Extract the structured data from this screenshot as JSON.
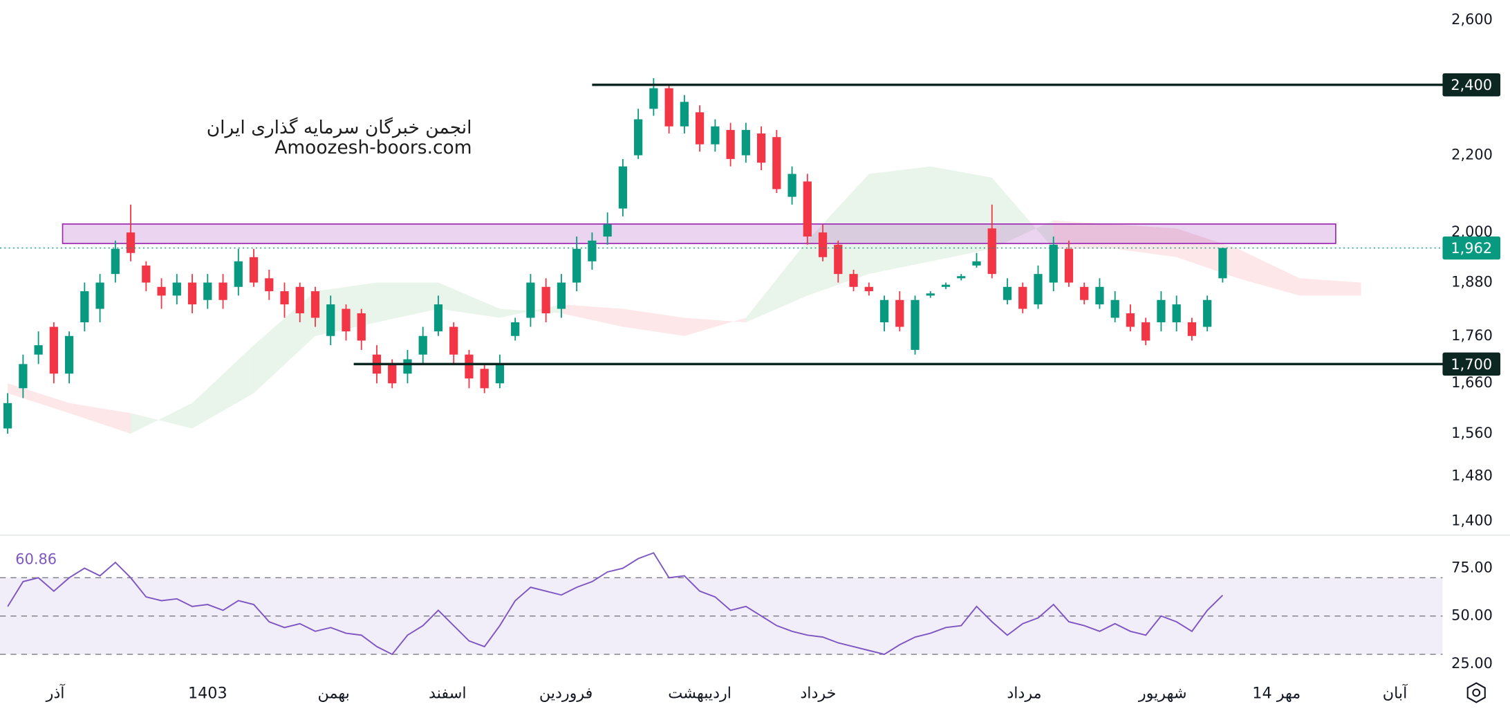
{
  "chart_data": {
    "type": "candlestick",
    "watermark": [
      "انجمن خبرگان سرمایه گذاری ایران",
      "Amoozesh-boors.com"
    ],
    "log_scale": true,
    "xlim": [
      -0.5,
      93.3
    ],
    "xticks": [
      {
        "value": 3.1,
        "label": "آذر"
      },
      {
        "value": 13.0,
        "label": "1403"
      },
      {
        "value": 21.2,
        "label": "بهمن"
      },
      {
        "value": 28.6,
        "label": "اسفند"
      },
      {
        "value": 36.3,
        "label": "فروردین"
      },
      {
        "value": 45.0,
        "label": "اردیبهشت"
      },
      {
        "value": 52.7,
        "label": "خرداد"
      },
      {
        "value": 66.1,
        "label": "مرداد"
      },
      {
        "value": 75.1,
        "label": "شهریور"
      },
      {
        "value": 82.5,
        "label": "14 مهر"
      },
      {
        "value": 90.2,
        "label": "آبان"
      }
    ],
    "ylim": [
      1377,
      2665
    ],
    "yticks": [
      {
        "value": 1400,
        "label": "1,400"
      },
      {
        "value": 1480,
        "label": "1,480"
      },
      {
        "value": 1560,
        "label": "1,560"
      },
      {
        "value": 1660,
        "label": "1,660"
      },
      {
        "value": 1760,
        "label": "1,760"
      },
      {
        "value": 1880,
        "label": "1,880"
      },
      {
        "value": 2000,
        "label": "2,000"
      },
      {
        "value": 2200,
        "label": "2,200"
      },
      {
        "value": 2400,
        "label": "2,400"
      },
      {
        "value": 2600,
        "label": "2,600"
      }
    ],
    "up_color": "#089981",
    "down_color": "#f23645",
    "open": [
      1570,
      1650,
      1720,
      1780,
      1680,
      1790,
      1820,
      1900,
      2000,
      1920,
      1870,
      1850,
      1880,
      1840,
      1880,
      1870,
      1940,
      1890,
      1860,
      1870,
      1860,
      1760,
      1820,
      1810,
      1720,
      1700,
      1680,
      1720,
      1770,
      1780,
      1720,
      1690,
      1660,
      1760,
      1800,
      1870,
      1820,
      1880,
      1930,
      1990,
      2060,
      2200,
      2330,
      2390,
      2280,
      2320,
      2230,
      2270,
      2200,
      2260,
      2250,
      2090,
      2130,
      2000,
      1970,
      1900,
      1870,
      1790,
      1840,
      1730,
      1850,
      1870,
      1890,
      1920,
      2010,
      1840,
      1870,
      1830,
      1880,
      1960,
      1870,
      1830,
      1800,
      1810,
      1790,
      1790,
      1790,
      1790,
      1780,
      1890
    ],
    "high": [
      1640,
      1720,
      1770,
      1790,
      1770,
      1880,
      1900,
      1980,
      2070,
      1930,
      1890,
      1900,
      1900,
      1900,
      1900,
      1960,
      1960,
      1910,
      1880,
      1880,
      1870,
      1850,
      1830,
      1820,
      1740,
      1710,
      1730,
      1780,
      1850,
      1790,
      1730,
      1700,
      1720,
      1800,
      1900,
      1890,
      1900,
      1990,
      2000,
      2050,
      2190,
      2330,
      2420,
      2400,
      2370,
      2340,
      2300,
      2290,
      2290,
      2280,
      2270,
      2170,
      2150,
      2020,
      1980,
      1910,
      1880,
      1850,
      1860,
      1850,
      1860,
      1880,
      1900,
      1950,
      2070,
      1890,
      1880,
      1920,
      1990,
      1980,
      1880,
      1890,
      1860,
      1830,
      1800,
      1860,
      1850,
      1800,
      1850,
      1962
    ],
    "low": [
      1560,
      1630,
      1700,
      1660,
      1660,
      1770,
      1790,
      1880,
      1930,
      1860,
      1820,
      1830,
      1810,
      1820,
      1820,
      1850,
      1870,
      1840,
      1800,
      1790,
      1780,
      1740,
      1750,
      1730,
      1660,
      1650,
      1660,
      1700,
      1760,
      1700,
      1650,
      1640,
      1650,
      1750,
      1780,
      1790,
      1800,
      1860,
      1910,
      1970,
      2040,
      2190,
      2310,
      2260,
      2260,
      2210,
      2210,
      2170,
      2180,
      2160,
      2100,
      2070,
      1970,
      1930,
      1880,
      1860,
      1850,
      1770,
      1770,
      1720,
      1845,
      1865,
      1885,
      1915,
      1890,
      1830,
      1810,
      1820,
      1860,
      1870,
      1830,
      1820,
      1790,
      1770,
      1740,
      1770,
      1770,
      1750,
      1770,
      1880
    ],
    "close": [
      1620,
      1700,
      1740,
      1680,
      1760,
      1860,
      1880,
      1960,
      1950,
      1880,
      1850,
      1880,
      1830,
      1880,
      1840,
      1930,
      1880,
      1860,
      1830,
      1810,
      1800,
      1830,
      1770,
      1750,
      1680,
      1660,
      1710,
      1760,
      1830,
      1720,
      1670,
      1650,
      1700,
      1790,
      1880,
      1810,
      1880,
      1960,
      1980,
      2020,
      2170,
      2300,
      2390,
      2280,
      2350,
      2230,
      2280,
      2190,
      2270,
      2180,
      2110,
      2150,
      1990,
      1940,
      1900,
      1870,
      1860,
      1840,
      1780,
      1840,
      1855,
      1875,
      1895,
      1930,
      1900,
      1870,
      1820,
      1900,
      1970,
      1880,
      1840,
      1870,
      1840,
      1780,
      1750,
      1840,
      1830,
      1760,
      1840,
      1962
    ],
    "cloud": {
      "x": [
        0,
        4,
        8,
        12,
        16,
        20,
        24,
        28,
        32,
        36,
        40,
        44,
        48,
        52,
        56,
        60,
        64,
        68,
        72,
        76,
        80,
        84,
        88
      ],
      "span_a": [
        1640,
        1600,
        1560,
        1620,
        1740,
        1860,
        1880,
        1880,
        1820,
        1810,
        1780,
        1760,
        1800,
        1980,
        2150,
        2170,
        2140,
        1960,
        1960,
        1940,
        1890,
        1850,
        1850
      ],
      "span_b": [
        1660,
        1620,
        1600,
        1570,
        1640,
        1760,
        1790,
        1820,
        1800,
        1830,
        1820,
        1800,
        1790,
        1850,
        1900,
        1930,
        1960,
        2030,
        2020,
        2010,
        1960,
        1890,
        1880
      ],
      "up_color": "#4caf50",
      "down_color": "#f23645"
    },
    "zone": {
      "x": [
        3.57,
        86.35
      ],
      "y": [
        1973,
        2021
      ],
      "color": "#9c27b0"
    },
    "levels": [
      {
        "value": 2400,
        "label": "2,400",
        "start": 38.0
      },
      {
        "value": 1700,
        "label": "1,700",
        "start": 22.5
      }
    ],
    "level_color": "#0c2621",
    "last_price": {
      "value": 1962,
      "label": "1,962",
      "color": "#089981"
    },
    "rsi": {
      "values": [
        55,
        68,
        70,
        63,
        70,
        75,
        71,
        78,
        70,
        60,
        58,
        59,
        55,
        56,
        53,
        58,
        56,
        47,
        44,
        46,
        42,
        44,
        41,
        40,
        34,
        30,
        40,
        45,
        53,
        45,
        37,
        34,
        45,
        58,
        65,
        63,
        61,
        65,
        68,
        73,
        75,
        80,
        83,
        70,
        71,
        63,
        60,
        53,
        55,
        50,
        45,
        42,
        40,
        39,
        36,
        34,
        32,
        30,
        35,
        39,
        41,
        44,
        45,
        55,
        47,
        40,
        46,
        49,
        56,
        47,
        45,
        42,
        46,
        42,
        40,
        50,
        47,
        42,
        53,
        60.86
      ],
      "last_label": "60.86",
      "color": "#7e57c2",
      "ylim": [
        17,
        92
      ],
      "yticks": [
        {
          "value": 25,
          "label": "25.00"
        },
        {
          "value": 50,
          "label": "50.00"
        },
        {
          "value": 75,
          "label": "75.00"
        }
      ],
      "bands": [
        30,
        50,
        70
      ]
    }
  }
}
